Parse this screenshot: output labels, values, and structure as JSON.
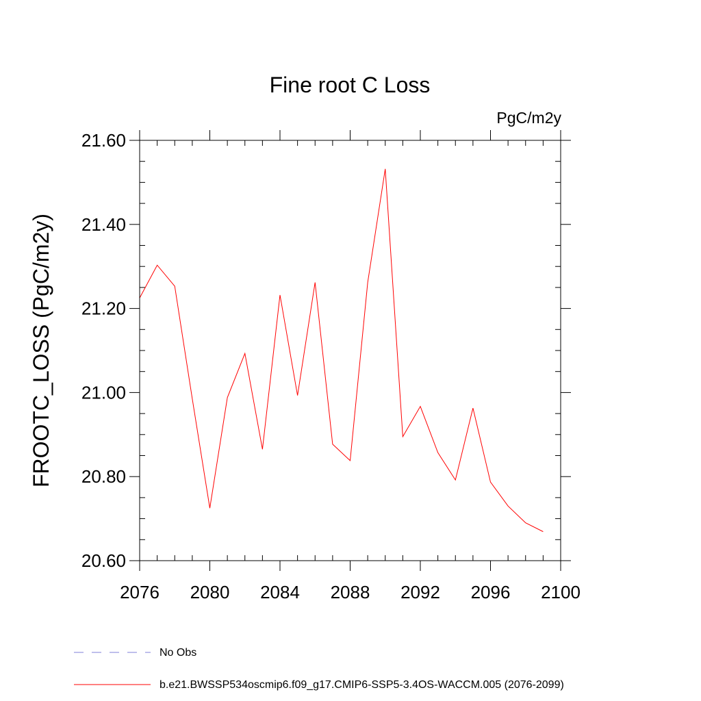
{
  "chart_data": {
    "type": "line",
    "title": "Fine root C Loss",
    "units": "PgC/m2y",
    "xlabel": "",
    "ylabel": "FROOTC_LOSS  (PgC/m2y)",
    "xlim": [
      2076,
      2100
    ],
    "ylim": [
      20.6,
      21.6
    ],
    "x_ticks": [
      2076,
      2080,
      2084,
      2088,
      2092,
      2096,
      2100
    ],
    "x_tick_labels": [
      "2076",
      "2080",
      "2084",
      "2088",
      "2092",
      "2096",
      "2100"
    ],
    "y_ticks": [
      20.6,
      20.8,
      21.0,
      21.2,
      21.4,
      21.6
    ],
    "y_tick_labels": [
      "20.60",
      "20.80",
      "21.00",
      "21.20",
      "21.40",
      "21.60"
    ],
    "x_minor_step": 1,
    "y_minor_step": 0.05,
    "grid": false,
    "legend_position": "bottom",
    "series": [
      {
        "name": "b.e21.BWSSP534oscmip6.f09_g17.CMIP6-SSP5-3.4OS-WACCM.005 (2076-2099)",
        "color": "#ff0000",
        "style": "solid",
        "x": [
          2076,
          2077,
          2078,
          2079,
          2080,
          2081,
          2082,
          2083,
          2084,
          2085,
          2086,
          2087,
          2088,
          2089,
          2090,
          2091,
          2092,
          2093,
          2094,
          2095,
          2096,
          2097,
          2098,
          2099
        ],
        "values": [
          21.225,
          21.303,
          21.253,
          20.985,
          20.725,
          20.988,
          21.093,
          20.865,
          21.232,
          20.993,
          21.262,
          20.877,
          20.838,
          21.262,
          21.532,
          20.895,
          20.967,
          20.857,
          20.792,
          20.963,
          20.787,
          20.73,
          20.69,
          20.669
        ]
      }
    ],
    "legend": [
      {
        "label": "No Obs",
        "color": "#7f7fd8",
        "style": "dashed"
      },
      {
        "label": "b.e21.BWSSP534oscmip6.f09_g17.CMIP6-SSP5-3.4OS-WACCM.005 (2076-2099)",
        "color": "#ff0000",
        "style": "solid"
      }
    ]
  }
}
